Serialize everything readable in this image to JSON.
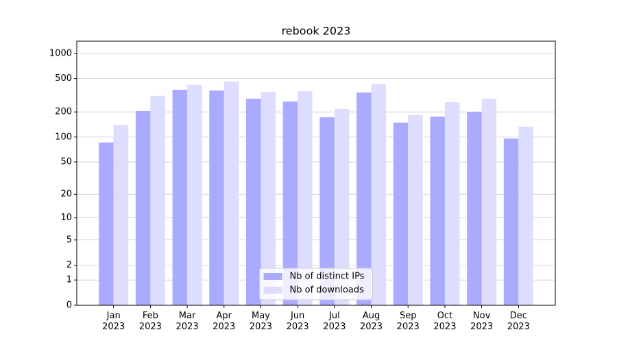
{
  "chart_data": {
    "type": "bar",
    "title": "rebook 2023",
    "categories": [
      "Jan\n2023",
      "Feb\n2023",
      "Mar\n2023",
      "Apr\n2023",
      "May\n2023",
      "Jun\n2023",
      "Jul\n2023",
      "Aug\n2023",
      "Sep\n2023",
      "Oct\n2023",
      "Nov\n2023",
      "Dec\n2023"
    ],
    "series": [
      {
        "name": "Nb of distinct IPs",
        "color": "#aaaaff",
        "values": [
          86,
          205,
          368,
          361,
          288,
          267,
          173,
          342,
          149,
          176,
          201,
          96
        ]
      },
      {
        "name": "Nb of downloads",
        "color": "#ddddff",
        "values": [
          140,
          311,
          420,
          462,
          348,
          355,
          217,
          429,
          183,
          262,
          288,
          133
        ]
      }
    ],
    "ylim": [
      0,
      1400
    ],
    "yticks": [
      0,
      1,
      2,
      5,
      10,
      20,
      50,
      100,
      200,
      500,
      1000
    ],
    "yscale": "log1p",
    "grid": true,
    "legend": "lower center"
  }
}
